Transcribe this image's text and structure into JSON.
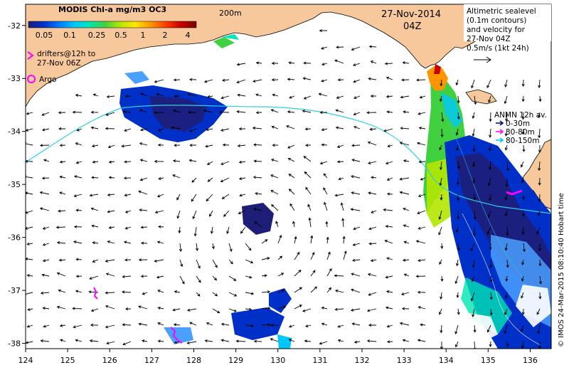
{
  "title": "MODIS Chl-a mg/m3 OC3",
  "colorbar": {
    "ticks": [
      "0.05",
      "0.1",
      "0.25",
      "0.5",
      "1",
      "2",
      "4"
    ],
    "colors": [
      "#1e1e78",
      "#0030c8",
      "#0078ff",
      "#00c8ff",
      "#00e6b4",
      "#40d040",
      "#b4e600",
      "#ffe600",
      "#ff9600",
      "#ff3c00",
      "#c80000",
      "#780000"
    ]
  },
  "date_text": "27-Nov-2014",
  "time_text": "04Z",
  "depth_label": "200m",
  "altimetry_note": [
    "Altimetric sealevel",
    "(0.1m contours)",
    "and velocity for",
    "27-Nov 04Z",
    "0.5m/s (1kt 24h)"
  ],
  "drifters_note": [
    "drifters@12h to",
    "27-Nov 06Z"
  ],
  "argo_label": "Argo",
  "anmn": {
    "title": "ANMN 12h av.",
    "items": [
      {
        "label": "0-30m",
        "color": "#000080"
      },
      {
        "label": "30-80m",
        "color": "#ff00ff"
      },
      {
        "label": "80-150m",
        "color": "#00c0ff"
      }
    ]
  },
  "credit": "© IMOS 24-Mar-2015 08:10:40 Hobart time",
  "axes": {
    "x_ticks": [
      "124",
      "125",
      "126",
      "127",
      "128",
      "129",
      "130",
      "131",
      "132",
      "133",
      "134",
      "135",
      "136"
    ],
    "y_ticks": [
      "-32",
      "-33",
      "-34",
      "-35",
      "-36",
      "-37",
      "-38"
    ],
    "lon_range": [
      124,
      136.5
    ],
    "lat_range": [
      -38.1,
      -31.6
    ]
  },
  "colors": {
    "land": "#f7c89b",
    "coast": "#000000",
    "contour": "#30d0e0",
    "arrow": "#000000",
    "drifter": "#ff00ff"
  }
}
